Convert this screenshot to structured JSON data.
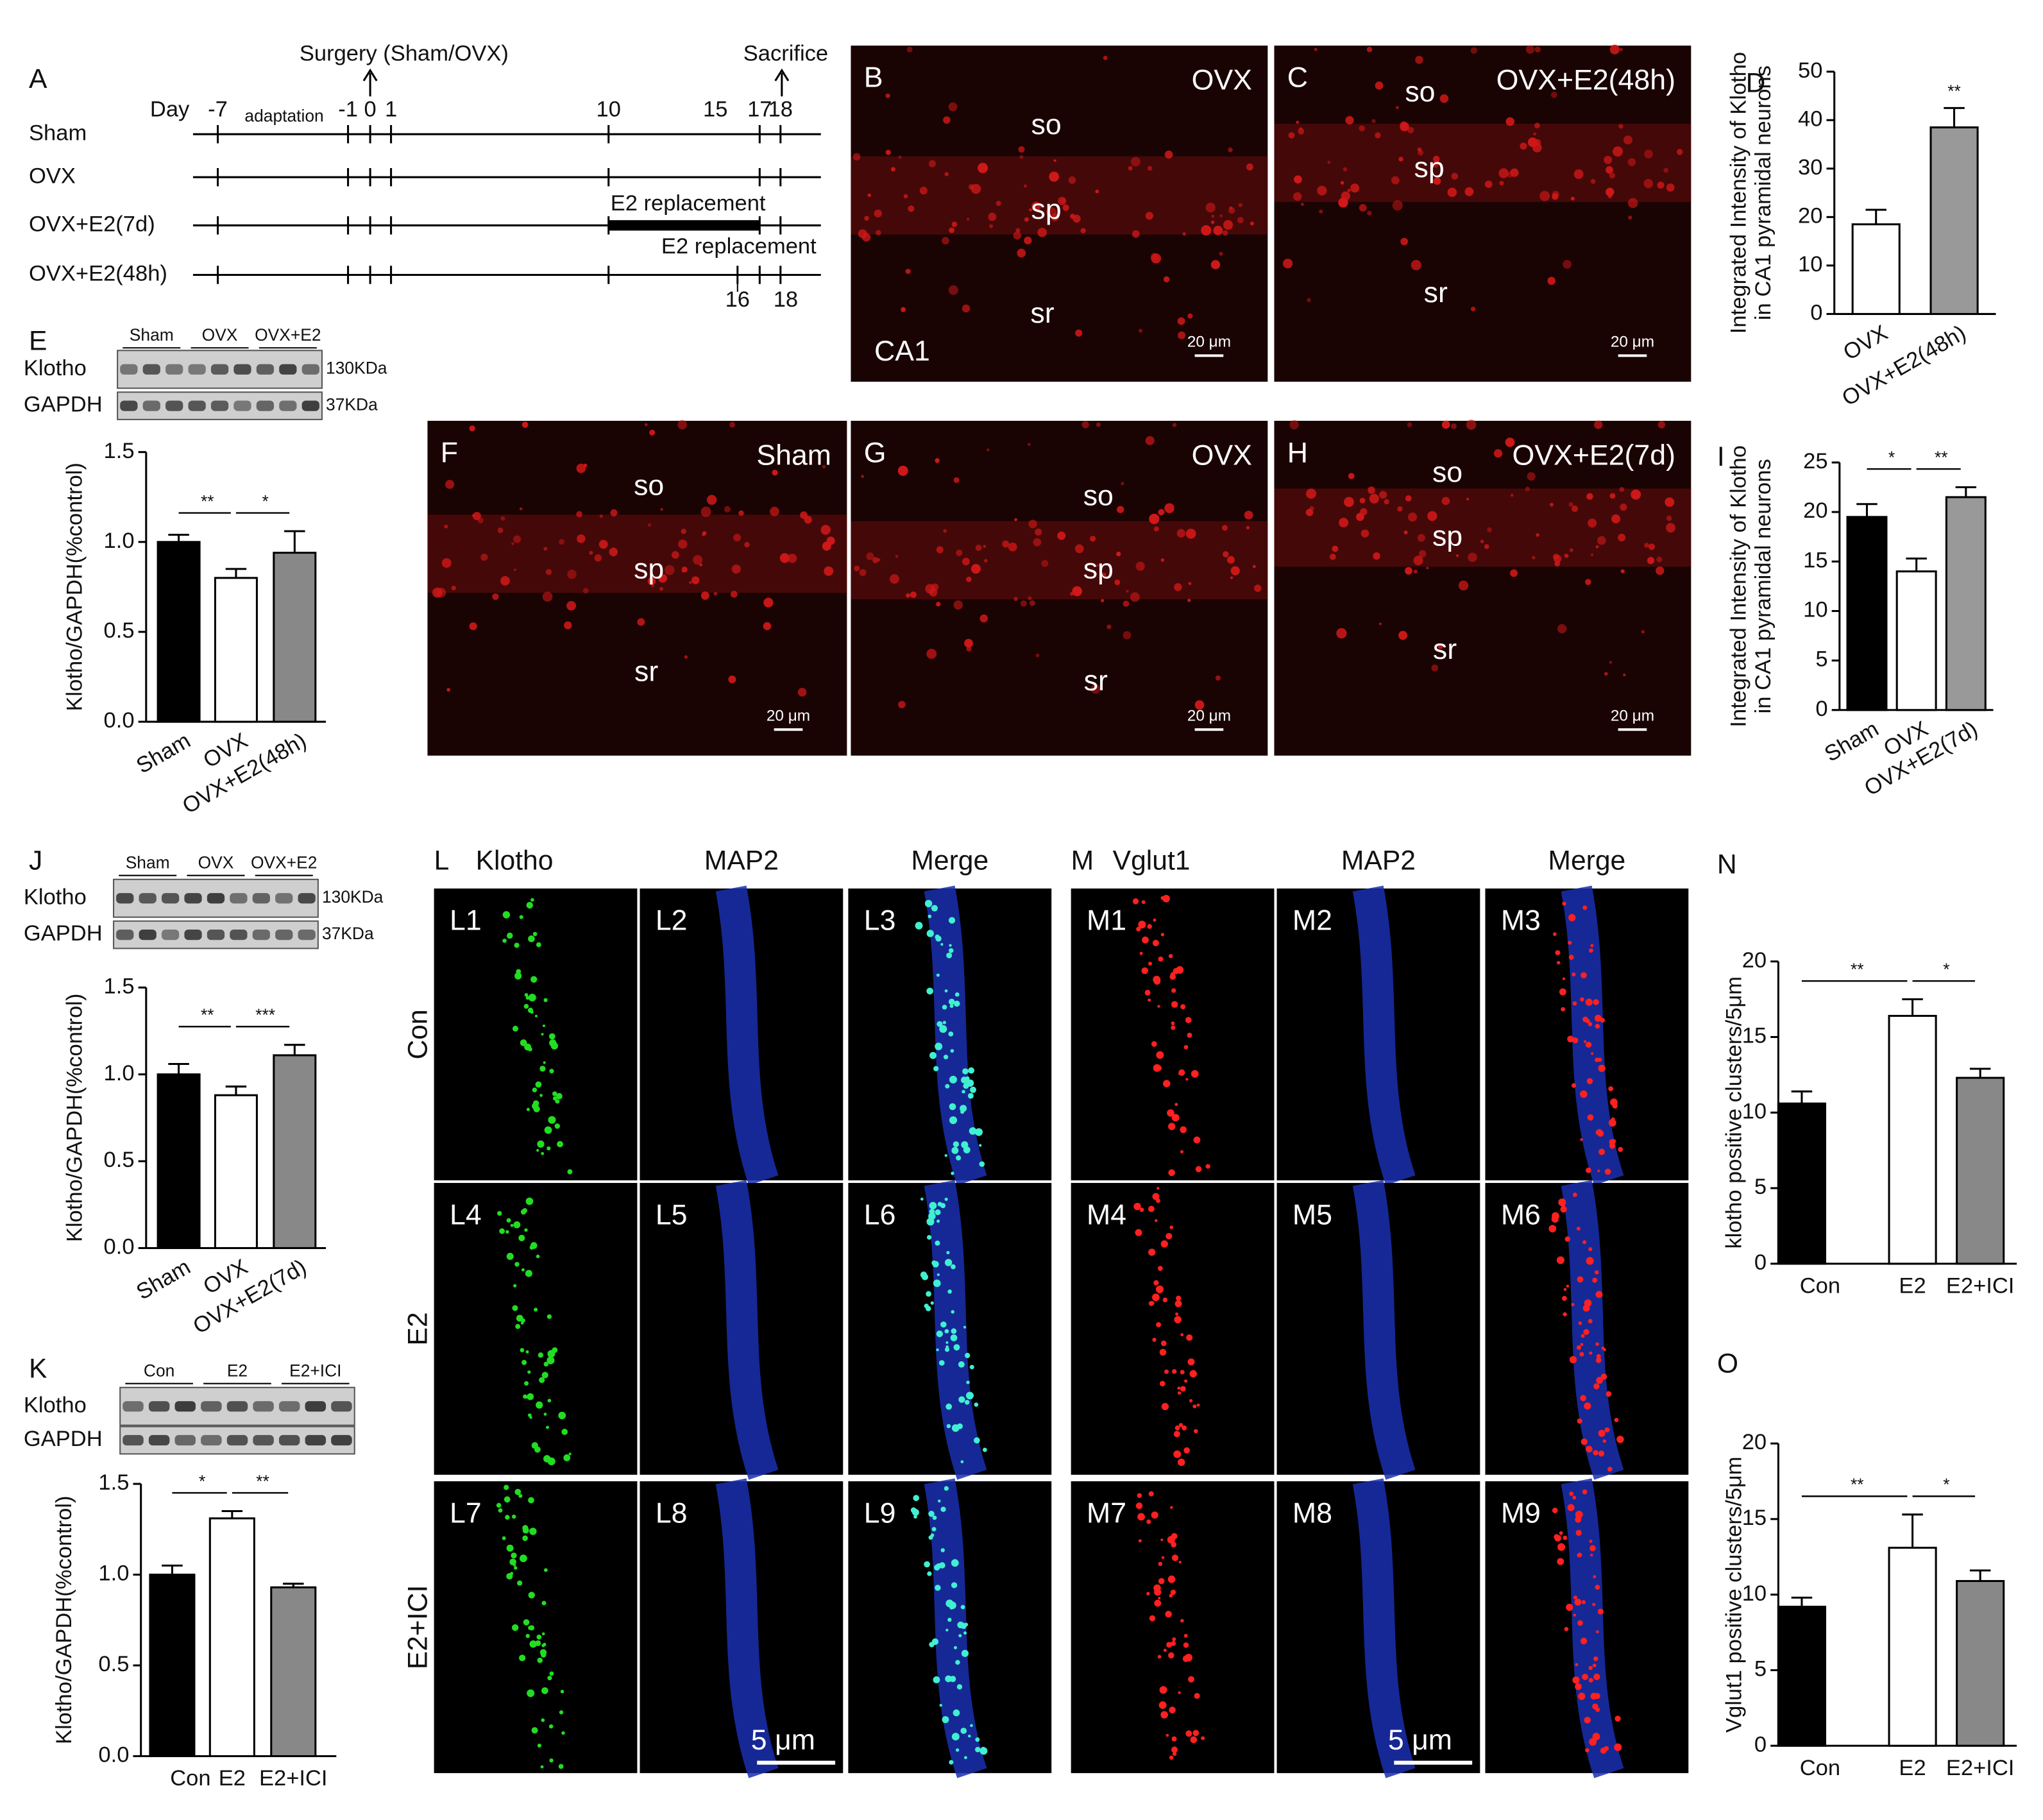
{
  "timeline": {
    "panel": "A",
    "surgery": "Surgery (Sham/OVX)",
    "sacrifice": "Sacrifice",
    "day_label": "Day",
    "days": [
      "-7",
      "-1",
      "0",
      "1",
      "10",
      "15",
      "17",
      "18"
    ],
    "adaptation": "adaptation",
    "groups": [
      "Sham",
      "OVX",
      "OVX+E2(7d)",
      "OVX+E2(48h)"
    ],
    "replacement_7d": "E2 replacement",
    "replacement_48h": "E2 replacement",
    "days_48h": [
      "16",
      "18"
    ]
  },
  "sections": [
    {
      "panel": "B",
      "title": "OVX",
      "layers": [
        "so",
        "sp",
        "sr"
      ],
      "region": "CA1",
      "scale": "20 μm"
    },
    {
      "panel": "C",
      "title": "OVX+E2(48h)",
      "layers": [
        "so",
        "sp",
        "sr"
      ],
      "scale": "20 μm"
    },
    {
      "panel": "F",
      "title": "Sham",
      "layers": [
        "so",
        "sp",
        "sr"
      ],
      "scale": "20 μm"
    },
    {
      "panel": "G",
      "title": "OVX",
      "layers": [
        "so",
        "sp",
        "sr"
      ],
      "scale": "20 μm"
    },
    {
      "panel": "H",
      "title": "OVX+E2(7d)",
      "layers": [
        "so",
        "sp",
        "sr"
      ],
      "scale": "20 μm"
    }
  ],
  "blots": [
    {
      "groups": [
        "Sham",
        "OVX",
        "OVX+E2"
      ],
      "proteins": [
        "Klotho",
        "GAPDH"
      ],
      "sizes": [
        "130KDa",
        "37KDa"
      ]
    },
    {
      "groups": [
        "Sham",
        "OVX",
        "OVX+E2"
      ],
      "proteins": [
        "Klotho",
        "GAPDH"
      ],
      "sizes": [
        "130KDa",
        "37KDa"
      ]
    },
    {
      "groups": [
        "Con",
        "E2",
        "E2+ICI"
      ],
      "proteins": [
        "Klotho",
        "GAPDH"
      ]
    }
  ],
  "colocalization": {
    "rows": [
      "Con",
      "E2",
      "E2+ICI"
    ],
    "scale": "5 μm",
    "sets": [
      {
        "panel": "L",
        "channels": [
          "Klotho",
          "MAP2",
          "Merge"
        ],
        "insets": [
          "L1",
          "L2",
          "L3",
          "L4",
          "L5",
          "L6",
          "L7",
          "L8",
          "L9"
        ]
      },
      {
        "panel": "M",
        "channels": [
          "Vglut1",
          "MAP2",
          "Merge"
        ],
        "insets": [
          "M1",
          "M2",
          "M3",
          "M4",
          "M5",
          "M6",
          "M7",
          "M8",
          "M9"
        ]
      }
    ]
  },
  "chart_data": [
    {
      "type": "bar",
      "panel": "D",
      "ylabel": [
        "Integrated Intensity of Klotho",
        "in CA1 pyramidal neurons"
      ],
      "categories": [
        "OVX",
        "OVX+E2(48h)"
      ],
      "values": [
        18.5,
        38.5
      ],
      "errors": [
        3,
        4
      ],
      "colors": [
        "#ffffff",
        "#999999"
      ],
      "ylim": [
        0,
        50
      ],
      "yticks": [
        0,
        10,
        20,
        30,
        40,
        50
      ],
      "significance": [
        {
          "label": "**",
          "between": [
            "OVX+E2(48h)"
          ]
        }
      ]
    },
    {
      "type": "bar",
      "panel": "E",
      "ylabel": [
        "Klotho/GAPDH(%control)"
      ],
      "categories": [
        "Sham",
        "OVX",
        "OVX+E2(48h)"
      ],
      "values": [
        1.0,
        0.8,
        0.94
      ],
      "errors": [
        0.04,
        0.05,
        0.12
      ],
      "colors": [
        "#000000",
        "#ffffff",
        "#888888"
      ],
      "ylim": [
        0,
        1.5
      ],
      "yticks": [
        {
          "value": 0,
          "label": "0.0"
        },
        {
          "value": 0.5,
          "label": "0.5"
        },
        {
          "value": 1,
          "label": "1.0"
        },
        {
          "value": 1.5,
          "label": "1.5"
        }
      ],
      "significance": [
        {
          "label": "**",
          "between": [
            "Sham",
            "OVX"
          ]
        },
        {
          "label": "*",
          "between": [
            "OVX",
            "OVX+E2(48h)"
          ]
        }
      ]
    },
    {
      "type": "bar",
      "panel": "I",
      "ylabel": [
        "Integrated Intensity of Klotho",
        "in CA1 pyramidal neurons"
      ],
      "categories": [
        "Sham",
        "OVX",
        "OVX+E2(7d)"
      ],
      "values": [
        19.5,
        14,
        21.5
      ],
      "errors": [
        1.3,
        1.3,
        1
      ],
      "colors": [
        "#000000",
        "#ffffff",
        "#999999"
      ],
      "ylim": [
        0,
        25
      ],
      "yticks": [
        0,
        5,
        10,
        15,
        20,
        25
      ],
      "significance": [
        {
          "label": "*",
          "between": [
            "Sham",
            "OVX"
          ]
        },
        {
          "label": "**",
          "between": [
            "OVX",
            "OVX+E2(7d)"
          ]
        }
      ]
    },
    {
      "type": "bar",
      "panel": "J",
      "ylabel": [
        "Klotho/GAPDH(%control)"
      ],
      "categories": [
        "Sham",
        "OVX",
        "OVX+E2(7d)"
      ],
      "values": [
        1.0,
        0.88,
        1.11
      ],
      "errors": [
        0.06,
        0.05,
        0.06
      ],
      "colors": [
        "#000000",
        "#ffffff",
        "#888888"
      ],
      "ylim": [
        0,
        1.5
      ],
      "yticks": [
        {
          "value": 0,
          "label": "0.0"
        },
        {
          "value": 0.5,
          "label": "0.5"
        },
        {
          "value": 1,
          "label": "1.0"
        },
        {
          "value": 1.5,
          "label": "1.5"
        }
      ],
      "significance": [
        {
          "label": "**",
          "between": [
            "Sham",
            "OVX"
          ]
        },
        {
          "label": "***",
          "between": [
            "OVX",
            "OVX+E2(7d)"
          ]
        }
      ]
    },
    {
      "type": "bar",
      "panel": "K",
      "ylabel": [
        "Klotho/GAPDH(%control)"
      ],
      "categories": [
        "Con",
        "E2",
        "E2+ICI"
      ],
      "values": [
        1.0,
        1.31,
        0.93
      ],
      "errors": [
        0.05,
        0.04,
        0.02
      ],
      "colors": [
        "#000000",
        "#ffffff",
        "#888888"
      ],
      "ylim": [
        0,
        1.5
      ],
      "yticks": [
        {
          "value": 0,
          "label": "0.0"
        },
        {
          "value": 0.5,
          "label": "0.5"
        },
        {
          "value": 1,
          "label": "1.0"
        },
        {
          "value": 1.5,
          "label": "1.5"
        }
      ],
      "significance": [
        {
          "label": "*",
          "between": [
            "Con",
            "E2"
          ]
        },
        {
          "label": "**",
          "between": [
            "E2",
            "E2+ICI"
          ]
        }
      ]
    },
    {
      "type": "bar",
      "panel": "N",
      "ylabel": [
        "klotho positive clusters/5μm"
      ],
      "categories": [
        "Con",
        "E2",
        "E2+ICI"
      ],
      "values": [
        10.6,
        16.4,
        12.3
      ],
      "errors": [
        0.8,
        1.1,
        0.6
      ],
      "colors": [
        "#000000",
        "#ffffff",
        "#888888"
      ],
      "ylim": [
        0,
        20
      ],
      "yticks": [
        0,
        5,
        10,
        15,
        20
      ],
      "significance": [
        {
          "label": "**",
          "between": [
            "Con",
            "E2"
          ]
        },
        {
          "label": "*",
          "between": [
            "E2",
            "E2+ICI"
          ]
        }
      ]
    },
    {
      "type": "bar",
      "panel": "O",
      "ylabel": [
        "Vglut1 positive clusters/5μm"
      ],
      "categories": [
        "Con",
        "E2",
        "E2+ICI"
      ],
      "values": [
        9.2,
        13.1,
        10.9
      ],
      "errors": [
        0.6,
        2.2,
        0.7
      ],
      "colors": [
        "#000000",
        "#ffffff",
        "#888888"
      ],
      "ylim": [
        0,
        20
      ],
      "yticks": [
        0,
        5,
        10,
        15,
        20
      ],
      "significance": [
        {
          "label": "**",
          "between": [
            "Con",
            "E2"
          ]
        },
        {
          "label": "*",
          "between": [
            "E2",
            "E2+ICI"
          ]
        }
      ]
    }
  ]
}
